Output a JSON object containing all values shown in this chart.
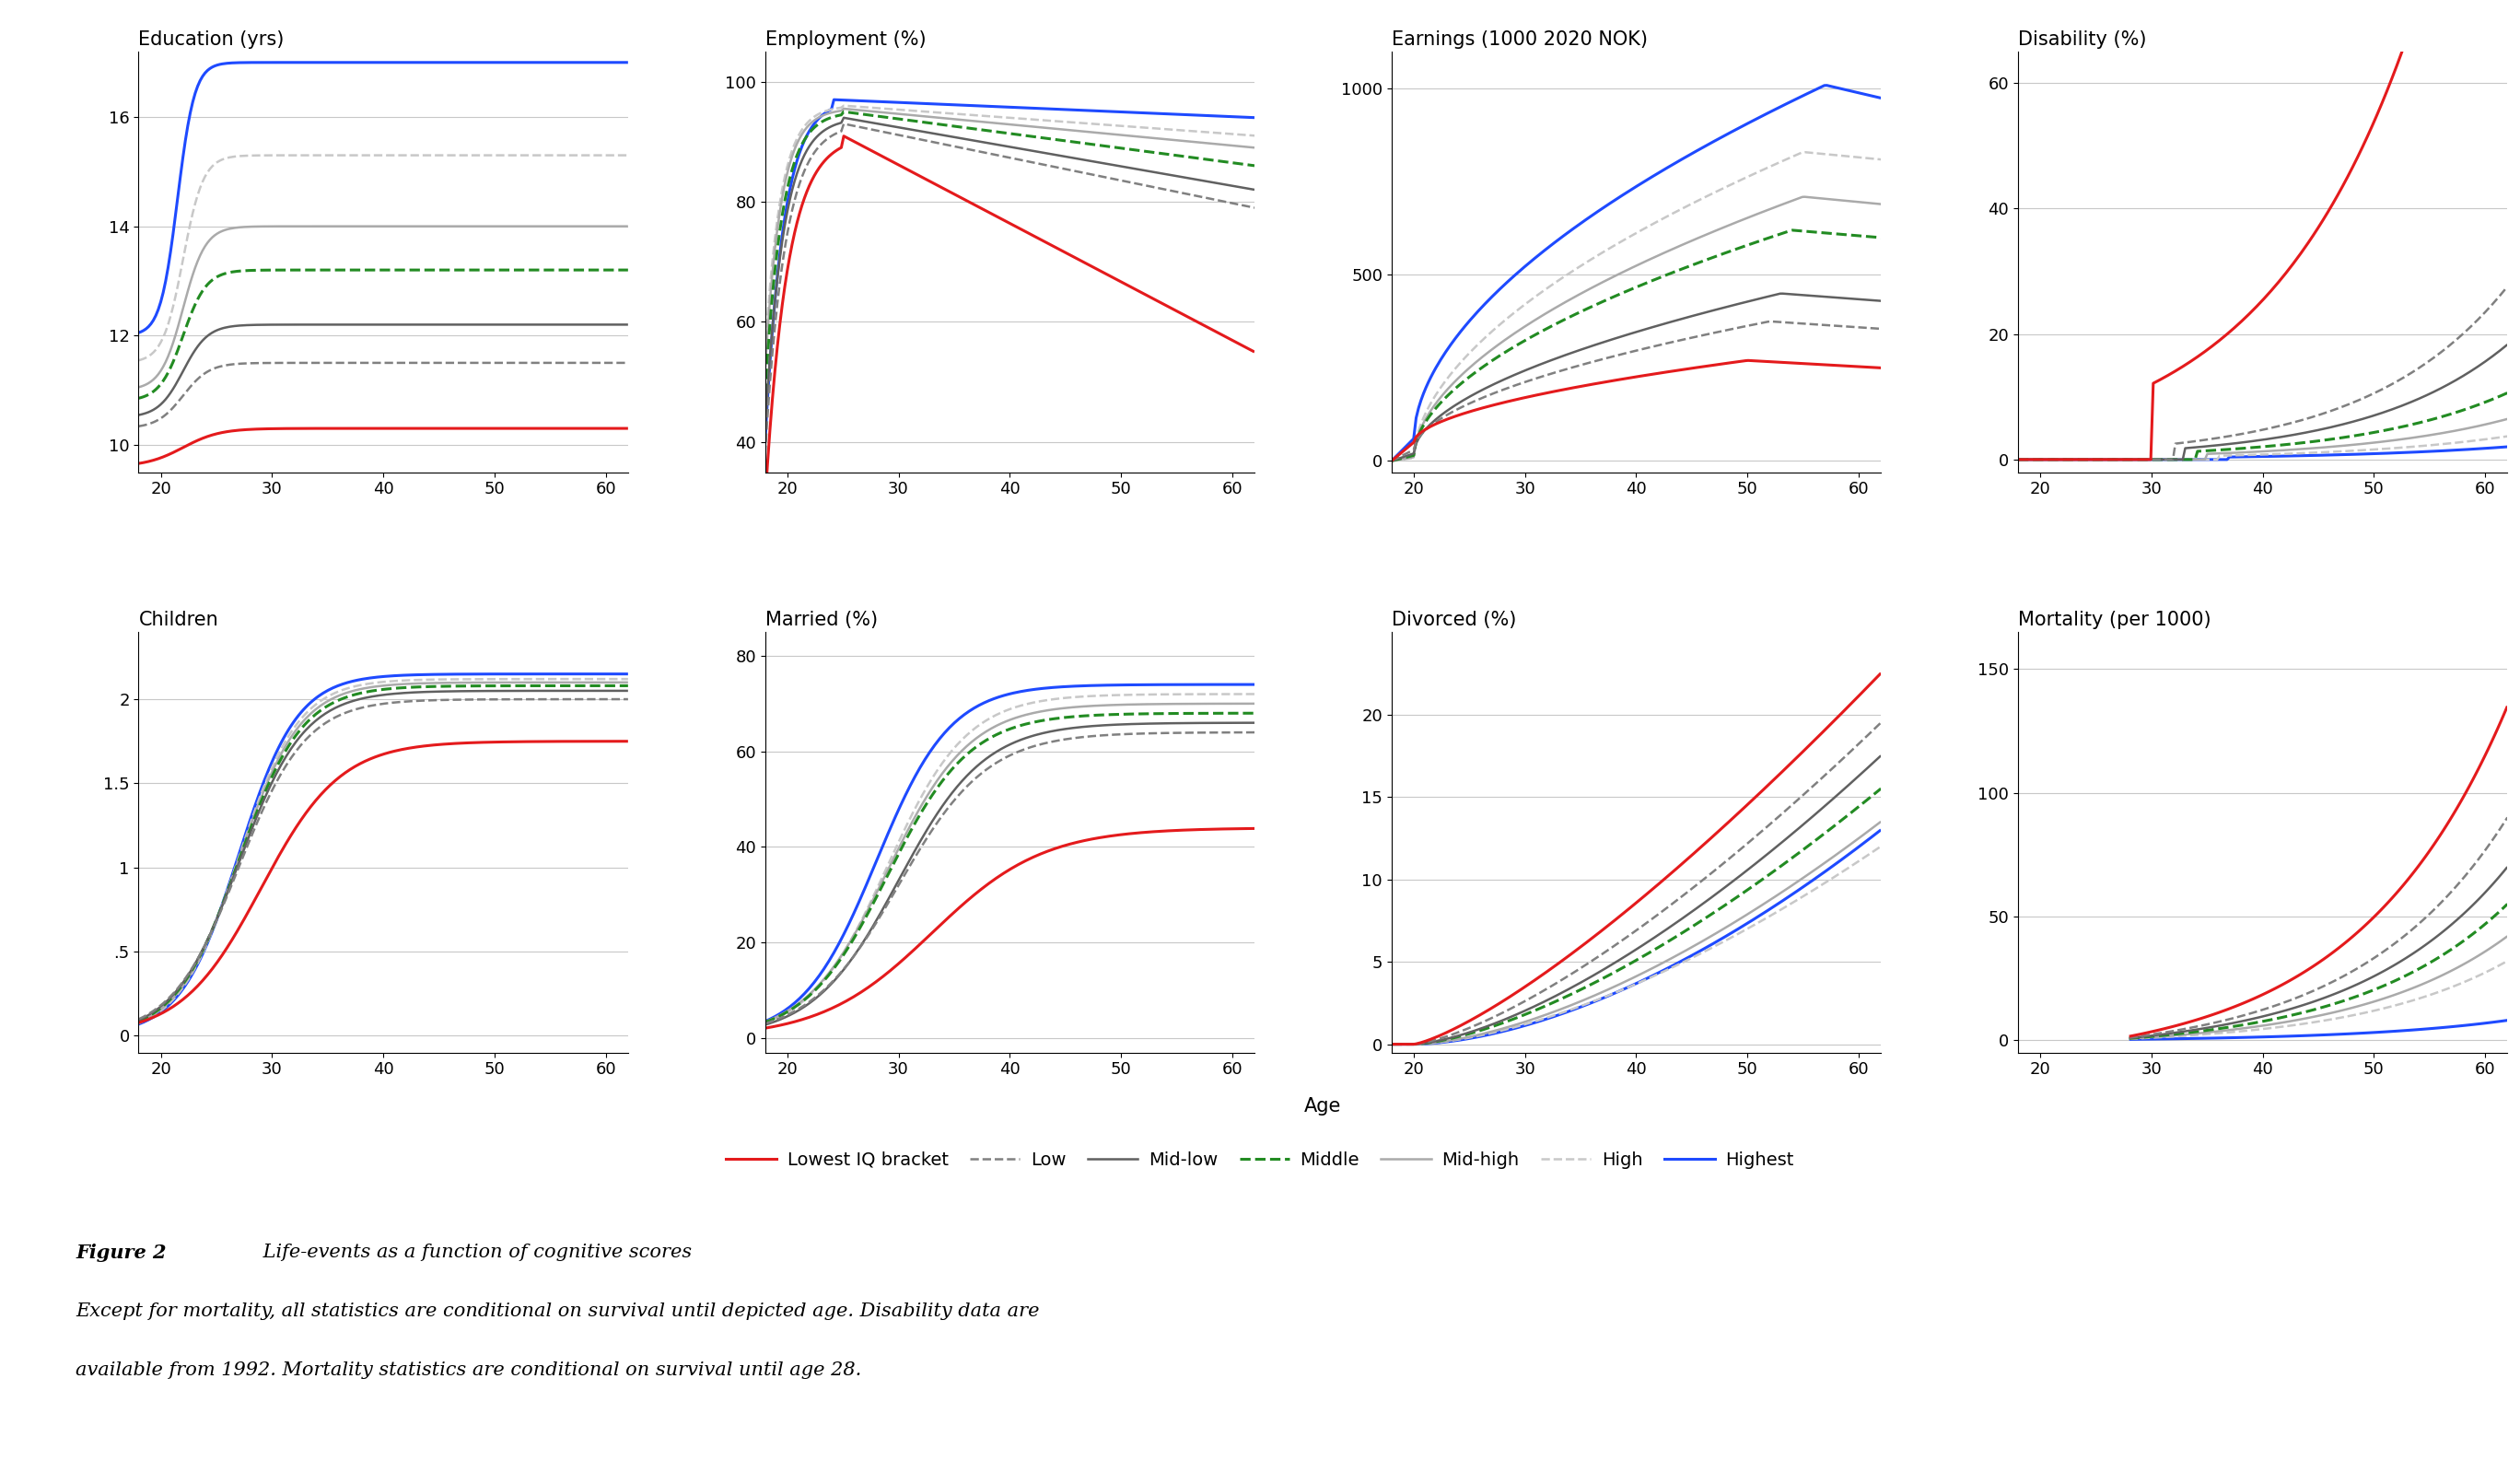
{
  "subplots": [
    {
      "title": "Education (yrs)",
      "ylim": [
        9.5,
        17.2
      ],
      "yticks": [
        10,
        12,
        14,
        16
      ],
      "xlim": [
        18,
        62
      ],
      "xticks": [
        20,
        30,
        40,
        50,
        60
      ]
    },
    {
      "title": "Employment (%)",
      "ylim": [
        35,
        105
      ],
      "yticks": [
        40,
        60,
        80,
        100
      ],
      "xlim": [
        18,
        62
      ],
      "xticks": [
        20,
        30,
        40,
        50,
        60
      ]
    },
    {
      "title": "Earnings (1000 2020 NOK)",
      "ylim": [
        -30,
        1100
      ],
      "yticks": [
        0,
        500,
        1000
      ],
      "xlim": [
        18,
        62
      ],
      "xticks": [
        20,
        30,
        40,
        50,
        60
      ]
    },
    {
      "title": "Disability (%)",
      "ylim": [
        -2,
        65
      ],
      "yticks": [
        0,
        20,
        40,
        60
      ],
      "xlim": [
        18,
        62
      ],
      "xticks": [
        20,
        30,
        40,
        50,
        60
      ]
    },
    {
      "title": "Children",
      "ylim": [
        -0.1,
        2.4
      ],
      "yticks": [
        0,
        0.5,
        1,
        1.5,
        2
      ],
      "yticklabels": [
        "0",
        ".5",
        "1",
        "1.5",
        "2"
      ],
      "xlim": [
        18,
        62
      ],
      "xticks": [
        20,
        30,
        40,
        50,
        60
      ]
    },
    {
      "title": "Married (%)",
      "ylim": [
        -3,
        85
      ],
      "yticks": [
        0,
        20,
        40,
        60,
        80
      ],
      "xlim": [
        18,
        62
      ],
      "xticks": [
        20,
        30,
        40,
        50,
        60
      ]
    },
    {
      "title": "Divorced (%)",
      "ylim": [
        -0.5,
        25
      ],
      "yticks": [
        0,
        5,
        10,
        15,
        20
      ],
      "xlim": [
        18,
        62
      ],
      "xticks": [
        20,
        30,
        40,
        50,
        60
      ]
    },
    {
      "title": "Mortality (per 1000)",
      "ylim": [
        -5,
        165
      ],
      "yticks": [
        0,
        50,
        100,
        150
      ],
      "xlim": [
        18,
        62
      ],
      "xticks": [
        20,
        30,
        40,
        50,
        60
      ]
    }
  ],
  "series": {
    "lowest": {
      "color": "#e41a1c",
      "lw": 2.2,
      "ls": "-",
      "label": "Lowest IQ bracket"
    },
    "low": {
      "color": "#808080",
      "lw": 1.8,
      "ls": "--",
      "label": "Low"
    },
    "midlow": {
      "color": "#606060",
      "lw": 1.8,
      "ls": "-",
      "label": "Mid-low"
    },
    "middle": {
      "color": "#228B22",
      "lw": 2.2,
      "ls": "--",
      "label": "Middle"
    },
    "midhigh": {
      "color": "#aaaaaa",
      "lw": 1.8,
      "ls": "-",
      "label": "Mid-high"
    },
    "high": {
      "color": "#c8c8c8",
      "lw": 1.8,
      "ls": "--",
      "label": "High"
    },
    "highest": {
      "color": "#1e4aff",
      "lw": 2.2,
      "ls": "-",
      "label": "Highest"
    }
  },
  "caption_bold": "Figure 2",
  "caption_italic": " Life-events as a function of cognitive scores",
  "caption_line2": "Except for mortality, all statistics are conditional on survival until depicted age. Disability data are",
  "caption_line3": "available from 1992. Mortality statistics are conditional on survival until age 28.",
  "xlabel": "Age"
}
